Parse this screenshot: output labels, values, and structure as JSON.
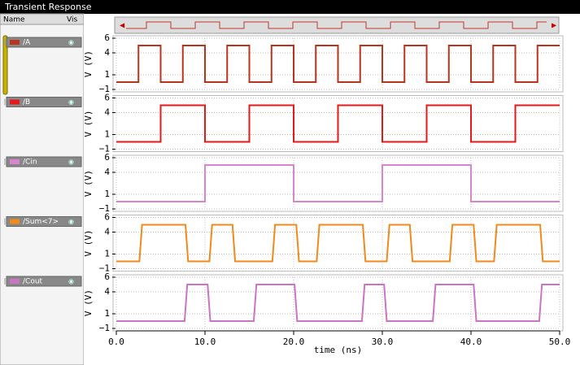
{
  "window": {
    "title": "Transient Response",
    "columns": [
      "Name",
      "Vis"
    ]
  },
  "chart_data": [
    {
      "type": "line",
      "ylabel": "V (V)",
      "xlim": [
        0,
        50
      ],
      "ylim": [
        -1,
        6
      ],
      "yticks": [
        6,
        4,
        1,
        {
          "value": -1,
          "label": "−1"
        }
      ],
      "grid": true,
      "series": [
        {
          "name": "/A",
          "color": "#b8341f",
          "x": [
            0,
            2.5,
            2.5,
            5,
            5,
            7.5,
            7.5,
            10,
            10,
            12.5,
            12.5,
            15,
            15,
            17.5,
            17.5,
            20,
            20,
            22.5,
            22.5,
            25,
            25,
            27.5,
            27.5,
            30,
            30,
            32.5,
            32.5,
            35,
            35,
            37.5,
            37.5,
            40,
            40,
            42.5,
            42.5,
            45,
            45,
            47.5,
            47.5,
            50
          ],
          "values": [
            0,
            0,
            5,
            5,
            0,
            0,
            5,
            5,
            0,
            0,
            5,
            5,
            0,
            0,
            5,
            5,
            0,
            0,
            5,
            5,
            0,
            0,
            5,
            5,
            0,
            0,
            5,
            5,
            0,
            0,
            5,
            5,
            0,
            0,
            5,
            5,
            0,
            0,
            5,
            5
          ]
        }
      ]
    },
    {
      "type": "line",
      "ylabel": "V (V)",
      "xlim": [
        0,
        50
      ],
      "ylim": [
        -1,
        6
      ],
      "yticks": [
        6,
        4,
        1,
        {
          "value": -1,
          "label": "−1"
        }
      ],
      "grid": true,
      "series": [
        {
          "name": "/B",
          "color": "#e41a1a",
          "x": [
            0,
            5,
            5,
            10,
            10,
            15,
            15,
            20,
            20,
            25,
            25,
            30,
            30,
            35,
            35,
            40,
            40,
            45,
            45,
            50
          ],
          "values": [
            0,
            0,
            5,
            5,
            0,
            0,
            5,
            5,
            0,
            0,
            5,
            5,
            0,
            0,
            5,
            5,
            0,
            0,
            5,
            5
          ]
        }
      ]
    },
    {
      "type": "line",
      "ylabel": "V (V)",
      "xlim": [
        0,
        50
      ],
      "ylim": [
        -1,
        6
      ],
      "yticks": [
        6,
        4,
        1,
        {
          "value": -1,
          "label": "−1"
        }
      ],
      "grid": true,
      "series": [
        {
          "name": "/Cin",
          "color": "#d884cf",
          "x": [
            0,
            10,
            10,
            20,
            20,
            30,
            30,
            40,
            40,
            50
          ],
          "values": [
            0,
            0,
            5,
            5,
            0,
            0,
            5,
            5,
            0,
            0
          ]
        }
      ]
    },
    {
      "type": "line",
      "ylabel": "V (V)",
      "xlim": [
        0,
        50
      ],
      "ylim": [
        -1,
        6
      ],
      "yticks": [
        6,
        4,
        1,
        {
          "value": -1,
          "label": "−1"
        }
      ],
      "grid": true,
      "series": [
        {
          "name": "/Sum<7>",
          "color": "#f08a1c",
          "x": [
            0,
            2.6,
            2.9,
            7.8,
            8.1,
            10.5,
            10.8,
            13.1,
            13.4,
            17.6,
            17.9,
            20.3,
            20.6,
            22.6,
            22.9,
            27.8,
            28.1,
            30.5,
            30.8,
            33.1,
            33.4,
            37.6,
            37.9,
            40.3,
            40.6,
            42.6,
            42.9,
            47.8,
            48.1,
            50
          ],
          "values": [
            0,
            0,
            5,
            5,
            0,
            0,
            5,
            5,
            0,
            0,
            5,
            5,
            0,
            0,
            5,
            5,
            0,
            0,
            5,
            5,
            0,
            0,
            5,
            5,
            0,
            0,
            5,
            5,
            0,
            0
          ]
        }
      ]
    },
    {
      "type": "line",
      "ylabel": "V (V)",
      "xlim": [
        0,
        50
      ],
      "ylim": [
        -1,
        6
      ],
      "yticks": [
        6,
        4,
        1,
        {
          "value": -1,
          "label": "−1"
        }
      ],
      "grid": true,
      "xlabel": "time (ns)",
      "xticks": [
        {
          "value": 0,
          "label": "0.0"
        },
        {
          "value": 10,
          "label": "10.0"
        },
        {
          "value": 20,
          "label": "20.0"
        },
        {
          "value": 30,
          "label": "30.0"
        },
        {
          "value": 40,
          "label": "40.0"
        },
        {
          "value": 50,
          "label": "50.0"
        }
      ],
      "series": [
        {
          "name": "/Cout",
          "color": "#cc74c4",
          "x": [
            0,
            7.7,
            8.0,
            10.3,
            10.6,
            15.5,
            15.8,
            20.1,
            20.4,
            27.7,
            28.0,
            30.2,
            30.5,
            35.7,
            36.0,
            40.3,
            40.6,
            47.7,
            48.0,
            50
          ],
          "values": [
            0,
            0,
            5,
            5,
            0,
            0,
            5,
            5,
            0,
            0,
            5,
            5,
            0,
            0,
            5,
            5,
            0,
            0,
            5,
            5
          ]
        }
      ]
    }
  ]
}
